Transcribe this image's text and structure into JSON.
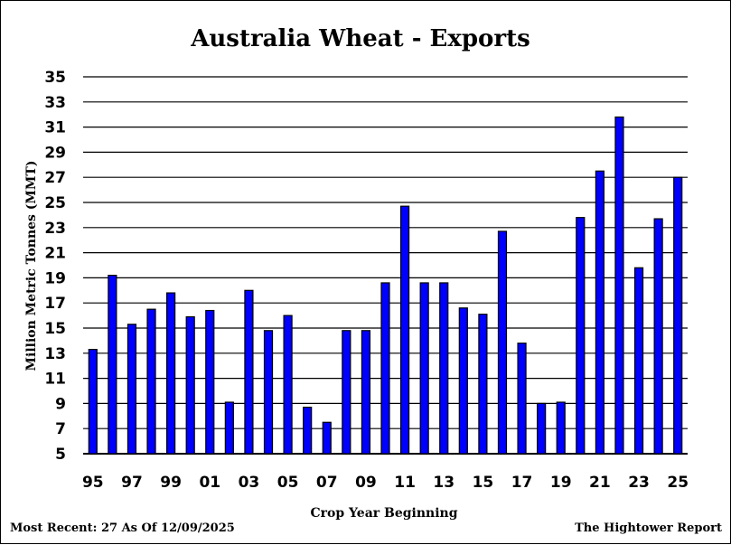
{
  "chart_data": {
    "type": "bar",
    "title": "Australia Wheat - Exports",
    "xlabel": "Crop Year Beginning",
    "ylabel": "Million Metric Tonnes (MMT)",
    "ylim": [
      5,
      35
    ],
    "yticks": [
      5,
      7,
      9,
      11,
      13,
      15,
      17,
      19,
      21,
      23,
      25,
      27,
      29,
      31,
      33,
      35
    ],
    "grid": true,
    "categories": [
      "95",
      "96",
      "97",
      "98",
      "99",
      "00",
      "01",
      "02",
      "03",
      "04",
      "05",
      "06",
      "07",
      "08",
      "09",
      "10",
      "11",
      "12",
      "13",
      "14",
      "15",
      "16",
      "17",
      "18",
      "19",
      "20",
      "21",
      "22",
      "23",
      "24",
      "25"
    ],
    "xtick_labels": [
      "95",
      "",
      "97",
      "",
      "99",
      "",
      "01",
      "",
      "03",
      "",
      "05",
      "",
      "07",
      "",
      "09",
      "",
      "11",
      "",
      "13",
      "",
      "15",
      "",
      "17",
      "",
      "19",
      "",
      "21",
      "",
      "23",
      "",
      "25"
    ],
    "values": [
      13.3,
      19.2,
      15.3,
      16.5,
      17.8,
      15.9,
      16.4,
      9.1,
      18.0,
      14.8,
      16.0,
      8.7,
      7.5,
      14.8,
      14.8,
      18.6,
      24.7,
      18.6,
      18.6,
      16.6,
      16.1,
      22.7,
      13.8,
      9.0,
      9.1,
      23.8,
      27.5,
      31.8,
      19.8,
      23.7,
      27.0
    ],
    "bar_color": "#0000ff",
    "bar_edge_color": "#000000"
  },
  "footer": {
    "left": "Most Recent: 27 As Of 12/09/2025",
    "right": "The Hightower Report"
  }
}
